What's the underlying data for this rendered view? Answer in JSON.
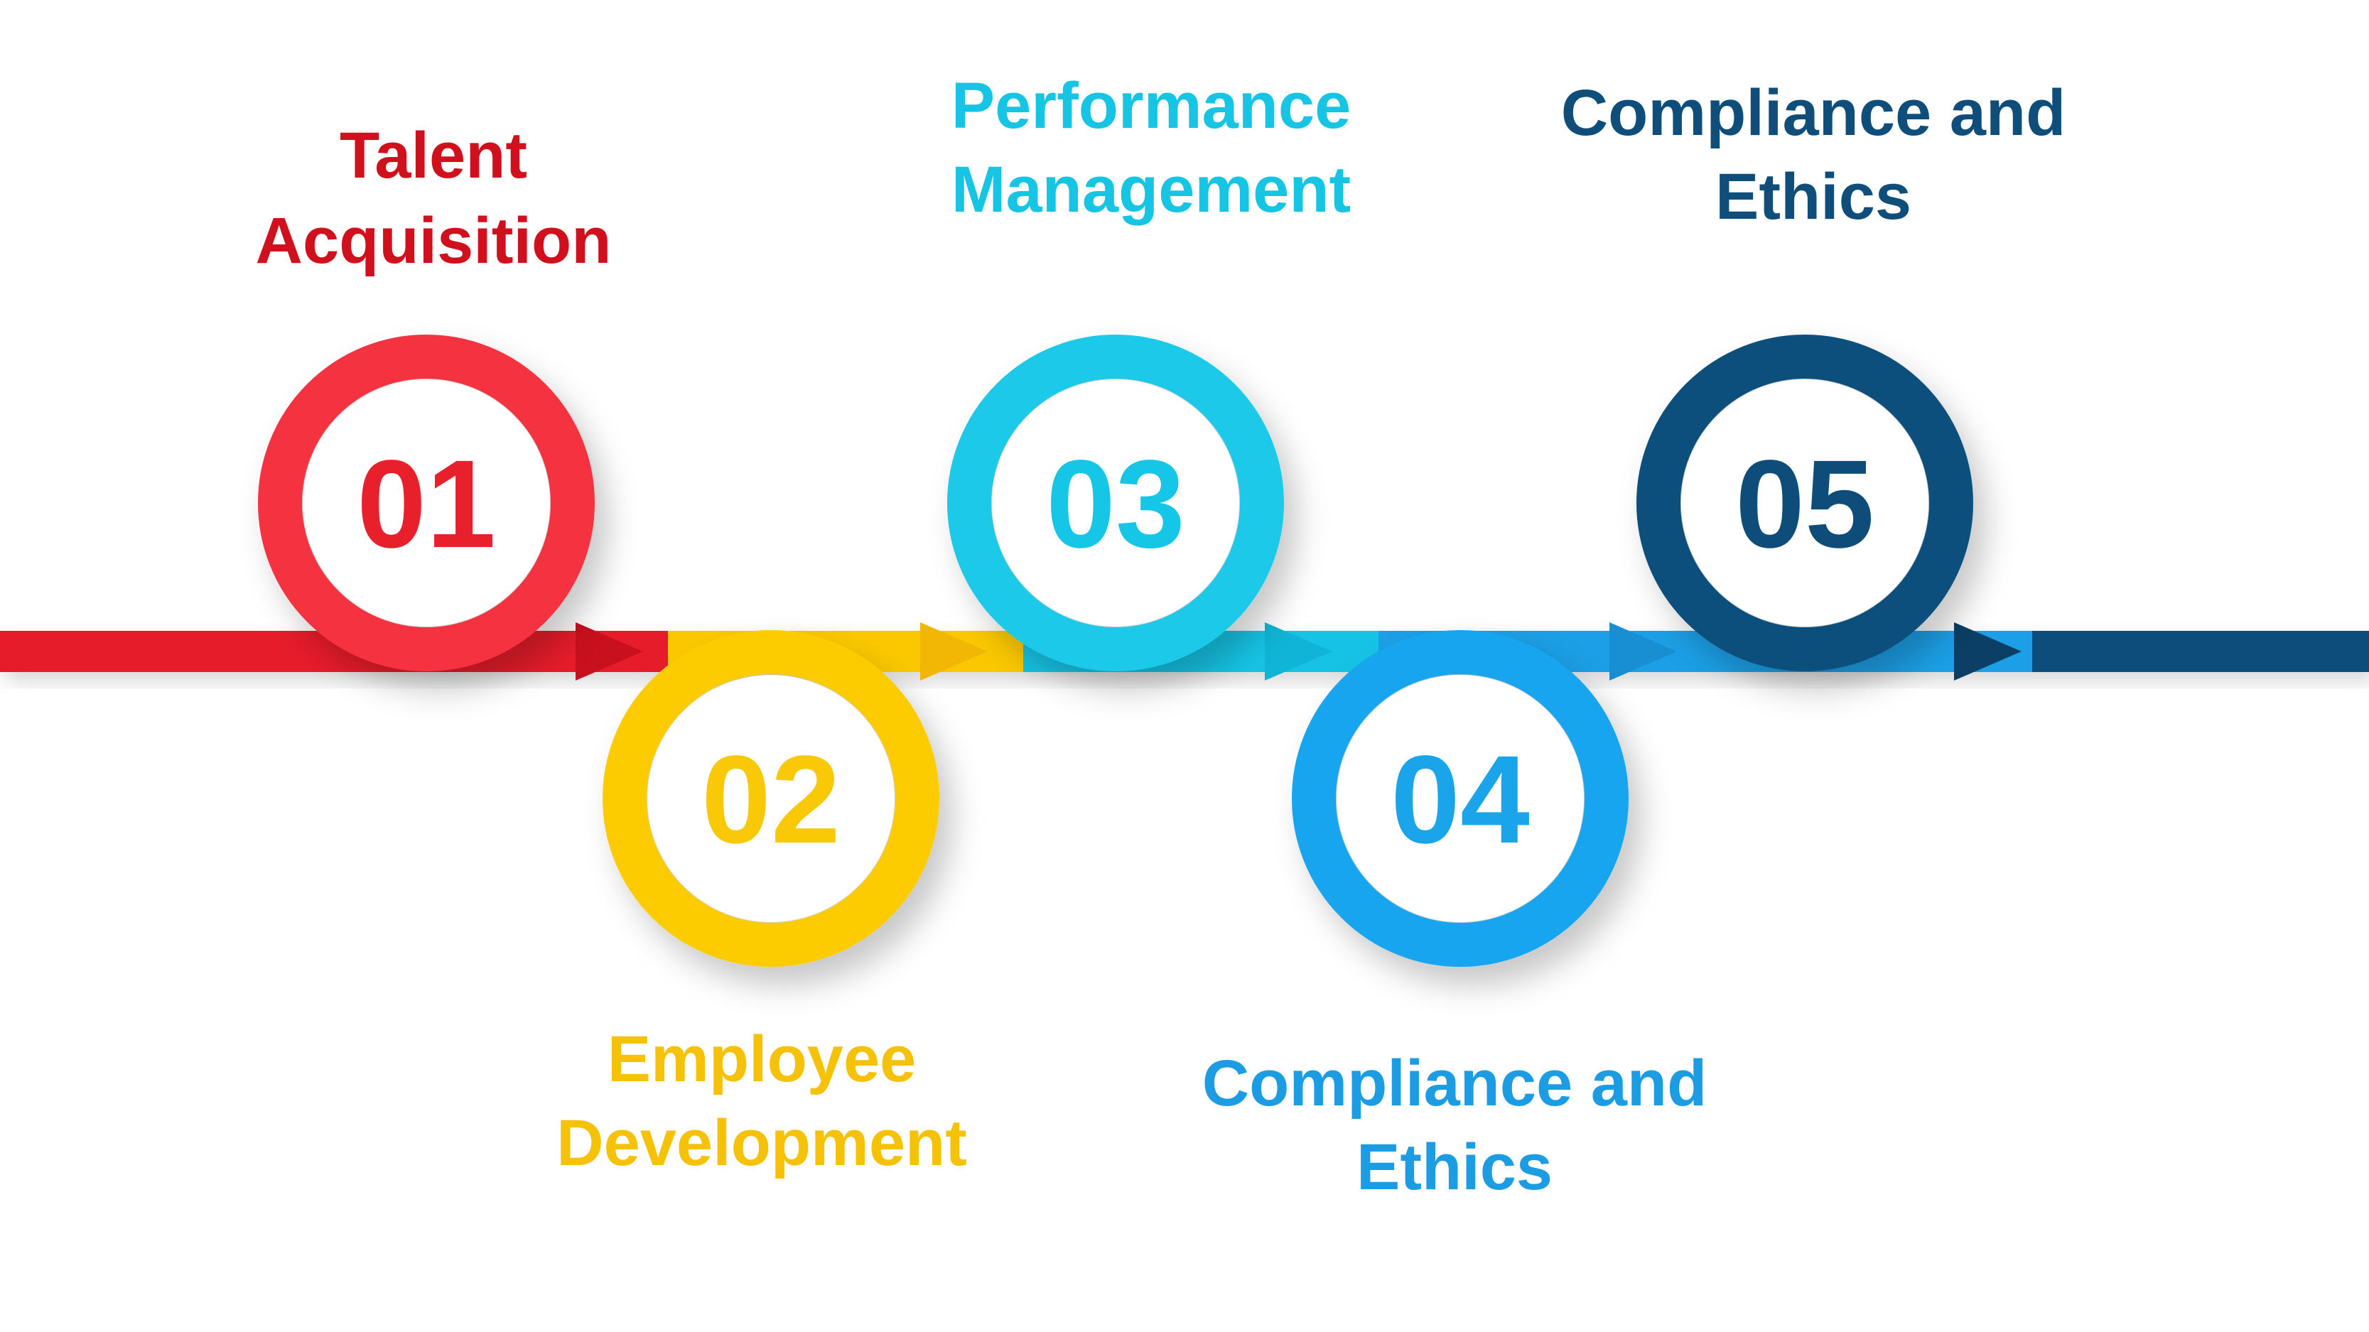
{
  "steps": [
    {
      "number": "01",
      "title_lines": [
        "Talent",
        "Acquisition"
      ],
      "color": "#E8202B",
      "ring": "#F5333F",
      "arrow": "#E61D2B",
      "text_color": "#D0101C"
    },
    {
      "number": "02",
      "title_lines": [
        "Employee",
        "Development"
      ],
      "color": "#F9C806",
      "ring": "#FCCB05",
      "arrow": "#FBC803",
      "text_color": "#F5C208"
    },
    {
      "number": "03",
      "title_lines": [
        "Performance",
        "Management"
      ],
      "color": "#16C6E6",
      "ring": "#1AC9E8",
      "arrow": "#18C3E4",
      "text_color": "#16C4E3"
    },
    {
      "number": "04",
      "title_lines": [
        "Compliance and",
        "Ethics"
      ],
      "color": "#1AA4EA",
      "ring": "#17A5EE",
      "arrow": "#1A9FE6",
      "text_color": "#1B9CE3"
    },
    {
      "number": "05",
      "title_lines": [
        "Compliance and",
        "Ethics"
      ],
      "color": "#0E4C79",
      "ring": "#0E4F7C",
      "arrow": "#0F4E7B",
      "text_color": "#0F4E7B"
    }
  ]
}
